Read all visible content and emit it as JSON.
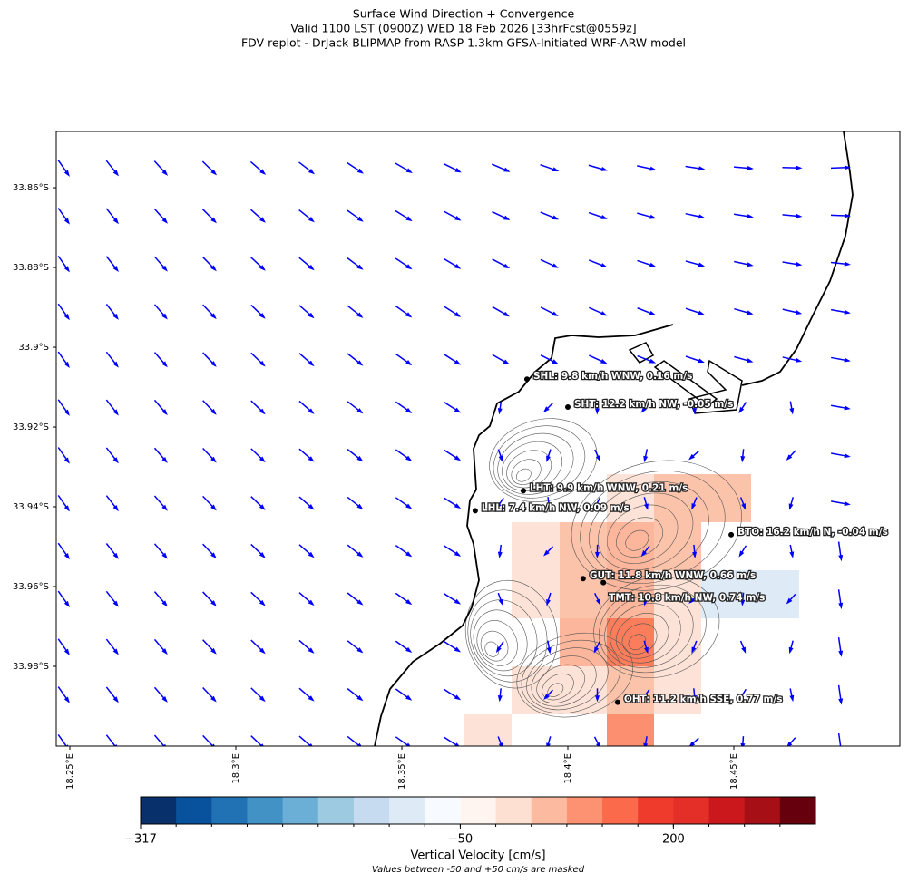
{
  "title_lines": [
    "Surface Wind Direction + Convergence",
    "Valid 1100 LST (0900Z) WED 18 Feb 2026 [33hrFcst@0559z]",
    "FDV replot - DrJack BLIPMAP from RASP 1.3km GFSA-Initiated WRF-ARW model"
  ],
  "map": {
    "lon_lim": [
      18.2459,
      18.5
    ],
    "lat_lim": [
      -33.8459,
      -34.0
    ],
    "lat_ticks": [
      {
        "value": -33.86,
        "label": "33.86°S"
      },
      {
        "value": -33.88,
        "label": "33.88°S"
      },
      {
        "value": -33.9,
        "label": "33.9°S"
      },
      {
        "value": -33.92,
        "label": "33.92°S"
      },
      {
        "value": -33.94,
        "label": "33.94°S"
      },
      {
        "value": -33.96,
        "label": "33.96°S"
      },
      {
        "value": -33.98,
        "label": "33.98°S"
      }
    ],
    "lon_ticks": [
      {
        "value": 18.25,
        "label": "18.25°E"
      },
      {
        "value": 18.3,
        "label": "18.3°E"
      },
      {
        "value": 18.35,
        "label": "18.35°E"
      },
      {
        "value": 18.4,
        "label": "18.4°E"
      },
      {
        "value": 18.45,
        "label": "18.45°E"
      }
    ],
    "stations": [
      {
        "label": "SHL: 9.8 km/h WNW, 0.16 m/s",
        "lon": 18.3877,
        "lat": -33.908
      },
      {
        "label": "SHT: 12.2 km/h NW, -0.05 m/s",
        "lon": 18.4,
        "lat": -33.915
      },
      {
        "label": "LHT: 9.9 km/h WNW, 0.21 m/s",
        "lon": 18.3866,
        "lat": -33.936
      },
      {
        "label": "LHL: 7.4 km/h NW, 0.09 m/s",
        "lon": 18.3721,
        "lat": -33.941
      },
      {
        "label": "BTO: 16.2 km/h N, -0.04 m/s",
        "lon": 18.4492,
        "lat": -33.947
      },
      {
        "label": "GUT: 11.8 km/h WNW, 0.66 m/s",
        "lon": 18.4046,
        "lat": -33.958
      },
      {
        "label": "TMT: 10.8 km/h NW, 0.74 m/s",
        "lon": 18.4107,
        "lat": -33.959
      },
      {
        "label": "OHT: 11.2 km/h SSE, 0.77 m/s",
        "lon": 18.415,
        "lat": -33.989
      }
    ]
  },
  "colorbar": {
    "colors": [
      "#08306b",
      "#08519c",
      "#2171b5",
      "#4292c6",
      "#6baed6",
      "#9ecae1",
      "#c6dbef",
      "#deebf7",
      "#f7fbff",
      "#fff5f0",
      "#fee0d2",
      "#fcbba1",
      "#fc9272",
      "#fb6a4a",
      "#ef3b2c",
      "#e32f27",
      "#cb181d",
      "#a50f15",
      "#67000d"
    ],
    "ticks": [
      {
        "value": -317,
        "label": "−317",
        "level": 0
      },
      {
        "value": -50,
        "label": "−50",
        "level": 9
      },
      {
        "value": 200,
        "label": "200",
        "level": 15
      }
    ],
    "label": "Vertical Velocity [cm/s]",
    "note": "Values between -50 and +50 cm/s are masked"
  }
}
